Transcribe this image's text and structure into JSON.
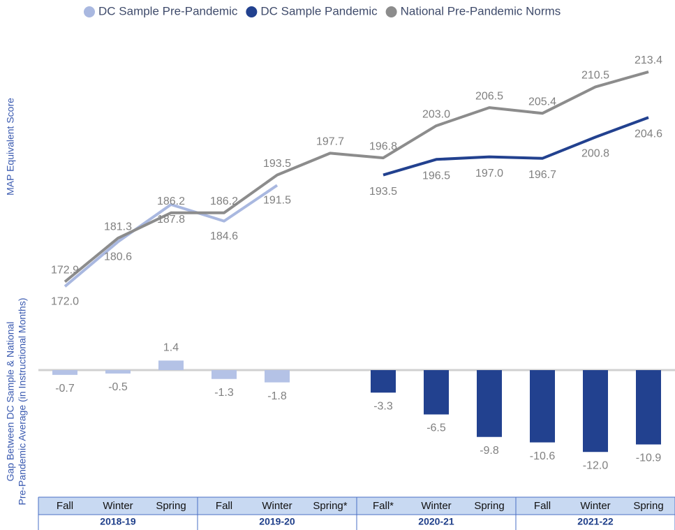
{
  "chart_data": [
    {
      "type": "line",
      "ylabel": "MAP Equivalent Score",
      "ylim": [
        170,
        215
      ],
      "series": [
        {
          "name": "DC Sample Pre-Pandemic",
          "color": "#a9b8e0",
          "values": [
            172.0,
            180.6,
            187.8,
            184.6,
            191.5,
            null,
            null,
            null,
            null,
            null,
            null,
            null
          ],
          "value_labels": [
            "172.0",
            "180.6",
            "187.8",
            "184.6",
            "191.5",
            null,
            null,
            null,
            null,
            null,
            null,
            null
          ]
        },
        {
          "name": "DC Sample Pandemic",
          "color": "#22418f",
          "values": [
            null,
            null,
            null,
            null,
            null,
            null,
            193.5,
            196.5,
            197.0,
            196.7,
            200.8,
            204.6
          ],
          "value_labels": [
            null,
            null,
            null,
            null,
            null,
            null,
            "193.5",
            "196.5",
            "197.0",
            "196.7",
            "200.8",
            "204.6"
          ]
        },
        {
          "name": "National Pre-Pandemic Norms",
          "color": "#8c8c8c",
          "values": [
            172.9,
            181.3,
            186.2,
            186.2,
            193.5,
            197.7,
            196.8,
            203.0,
            206.5,
            205.4,
            210.5,
            213.4
          ],
          "value_labels": [
            "172.9",
            "181.3",
            "186.2",
            "186.2",
            "193.5",
            "197.7",
            "196.8",
            "203.0",
            "206.5",
            "205.4",
            "210.5",
            "213.4"
          ]
        }
      ]
    },
    {
      "type": "bar",
      "ylabel": [
        "Gap Between DC Sample & National",
        "Pre-Pandemic Average (in Instructional Months)"
      ],
      "ylim": [
        -13,
        2
      ],
      "series": [
        {
          "color": "#b4c2e6",
          "values": [
            -0.7,
            -0.5,
            1.4,
            -1.3,
            -1.8,
            null,
            null,
            null,
            null,
            null,
            null,
            null
          ],
          "value_labels": [
            "-0.7",
            "-0.5",
            "1.4",
            "-1.3",
            "-1.8",
            null,
            null,
            null,
            null,
            null,
            null,
            null
          ]
        },
        {
          "color": "#22418f",
          "values": [
            null,
            null,
            null,
            null,
            null,
            null,
            -3.3,
            -6.5,
            -9.8,
            -10.6,
            -12.0,
            -10.9
          ],
          "value_labels": [
            null,
            null,
            null,
            null,
            null,
            null,
            "-3.3",
            "-6.5",
            "-9.8",
            "-10.6",
            "-12.0",
            "-10.9"
          ]
        }
      ]
    }
  ],
  "x_axis": {
    "categories": [
      "Fall",
      "Winter",
      "Spring",
      "Fall",
      "Winter",
      "Spring*",
      "Fall*",
      "Winter",
      "Spring",
      "Fall",
      "Winter",
      "Spring"
    ],
    "groups": [
      "2018-19",
      "2019-20",
      "2020-21",
      "2021-22"
    ]
  }
}
